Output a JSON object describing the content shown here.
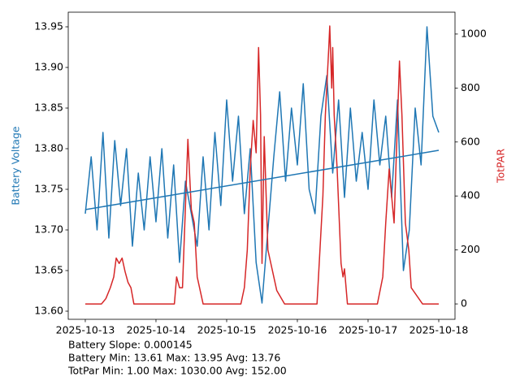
{
  "chart_data": {
    "type": "line",
    "ylabel": "Battery Voltage",
    "y2label": "TotPAR",
    "xlim": [
      "2025-10-12T18:13",
      "2025-10-18T05:31"
    ],
    "xticks": [
      "2025-10-13",
      "2025-10-14",
      "2025-10-15",
      "2025-10-16",
      "2025-10-17",
      "2025-10-18"
    ],
    "ylim": [
      13.59,
      13.968
    ],
    "yticks": [
      {
        "value": 13.6,
        "label": "13.60"
      },
      {
        "value": 13.65,
        "label": "13.65"
      },
      {
        "value": 13.7,
        "label": "13.70"
      },
      {
        "value": 13.75,
        "label": "13.75"
      },
      {
        "value": 13.8,
        "label": "13.80"
      },
      {
        "value": 13.85,
        "label": "13.85"
      },
      {
        "value": 13.9,
        "label": "13.90"
      },
      {
        "value": 13.95,
        "label": "13.95"
      }
    ],
    "y2lim": [
      -57,
      1081
    ],
    "y2ticks": [
      0,
      200,
      400,
      600,
      800,
      1000
    ],
    "series": [
      {
        "color": "#1f77b4",
        "x": [
          "2025-10-13T00:00",
          "2025-10-13T02:00",
          "2025-10-13T04:00",
          "2025-10-13T06:00",
          "2025-10-13T08:00",
          "2025-10-13T10:00",
          "2025-10-13T12:00",
          "2025-10-13T14:00",
          "2025-10-13T16:00",
          "2025-10-13T18:00",
          "2025-10-13T20:00",
          "2025-10-13T22:00",
          "2025-10-14T00:00",
          "2025-10-14T02:00",
          "2025-10-14T04:00",
          "2025-10-14T06:00",
          "2025-10-14T08:00",
          "2025-10-14T10:00",
          "2025-10-14T12:00",
          "2025-10-14T14:00",
          "2025-10-14T16:00",
          "2025-10-14T18:00",
          "2025-10-14T20:00",
          "2025-10-14T22:00",
          "2025-10-15T00:00",
          "2025-10-15T02:00",
          "2025-10-15T04:00",
          "2025-10-15T06:00",
          "2025-10-15T08:00",
          "2025-10-15T10:00",
          "2025-10-15T12:00",
          "2025-10-15T14:00",
          "2025-10-15T16:00",
          "2025-10-15T18:00",
          "2025-10-15T20:00",
          "2025-10-15T22:00",
          "2025-10-16T00:00",
          "2025-10-16T02:00",
          "2025-10-16T04:00",
          "2025-10-16T06:00",
          "2025-10-16T08:00",
          "2025-10-16T10:00",
          "2025-10-16T12:00",
          "2025-10-16T14:00",
          "2025-10-16T16:00",
          "2025-10-16T18:00",
          "2025-10-16T20:00",
          "2025-10-16T22:00",
          "2025-10-17T00:00",
          "2025-10-17T02:00",
          "2025-10-17T04:00",
          "2025-10-17T06:00",
          "2025-10-17T08:00",
          "2025-10-17T10:00",
          "2025-10-17T12:00",
          "2025-10-17T14:00",
          "2025-10-17T16:00",
          "2025-10-17T18:00",
          "2025-10-17T20:00",
          "2025-10-17T22:00",
          "2025-10-18T00:00"
        ],
        "values": [
          13.72,
          13.79,
          13.7,
          13.82,
          13.69,
          13.81,
          13.73,
          13.8,
          13.68,
          13.77,
          13.7,
          13.79,
          13.71,
          13.8,
          13.69,
          13.78,
          13.66,
          13.76,
          13.72,
          13.68,
          13.79,
          13.7,
          13.82,
          13.73,
          13.86,
          13.76,
          13.84,
          13.72,
          13.8,
          13.66,
          13.61,
          13.7,
          13.79,
          13.87,
          13.76,
          13.85,
          13.78,
          13.88,
          13.75,
          13.72,
          13.84,
          13.89,
          13.77,
          13.86,
          13.74,
          13.85,
          13.76,
          13.82,
          13.75,
          13.86,
          13.78,
          13.84,
          13.74,
          13.86,
          13.65,
          13.7,
          13.85,
          13.78,
          13.95,
          13.84,
          13.82
        ]
      },
      {
        "color": "#d62728",
        "axis": "y2",
        "x": [
          "2025-10-13T00:00",
          "2025-10-13T05:30",
          "2025-10-13T07:00",
          "2025-10-13T08:30",
          "2025-10-13T09:40",
          "2025-10-13T10:30",
          "2025-10-13T11:30",
          "2025-10-13T12:30",
          "2025-10-13T13:30",
          "2025-10-13T14:30",
          "2025-10-13T15:30",
          "2025-10-13T16:30",
          "2025-10-14T06:15",
          "2025-10-14T07:00",
          "2025-10-14T08:00",
          "2025-10-14T09:00",
          "2025-10-14T10:50",
          "2025-10-14T12:00",
          "2025-10-14T13:00",
          "2025-10-14T14:00",
          "2025-10-14T16:00",
          "2025-10-15T04:50",
          "2025-10-15T06:00",
          "2025-10-15T07:00",
          "2025-10-15T08:00",
          "2025-10-15T09:00",
          "2025-10-15T10:00",
          "2025-10-15T10:50",
          "2025-10-15T11:30",
          "2025-10-15T12:00",
          "2025-10-15T12:45",
          "2025-10-15T14:00",
          "2025-10-15T15:00",
          "2025-10-15T17:00",
          "2025-10-15T19:40",
          "2025-10-16T06:40",
          "2025-10-16T08:40",
          "2025-10-16T09:30",
          "2025-10-16T10:40",
          "2025-10-16T11:00",
          "2025-10-16T11:40",
          "2025-10-16T12:00",
          "2025-10-16T12:30",
          "2025-10-16T13:30",
          "2025-10-16T14:50",
          "2025-10-16T15:30",
          "2025-10-16T16:00",
          "2025-10-16T17:00",
          "2025-10-17T03:10",
          "2025-10-17T05:00",
          "2025-10-17T06:00",
          "2025-10-17T07:10",
          "2025-10-17T08:00",
          "2025-10-17T08:50",
          "2025-10-17T10:40",
          "2025-10-17T11:30",
          "2025-10-17T12:40",
          "2025-10-17T13:50",
          "2025-10-17T14:40",
          "2025-10-17T18:30",
          "2025-10-18T00:00"
        ],
        "values": [
          0,
          0,
          20,
          60,
          100,
          170,
          150,
          170,
          120,
          80,
          60,
          0,
          0,
          100,
          60,
          60,
          610,
          350,
          300,
          100,
          0,
          0,
          60,
          200,
          500,
          680,
          560,
          950,
          700,
          150,
          620,
          200,
          150,
          50,
          0,
          0,
          400,
          700,
          950,
          1030,
          800,
          950,
          700,
          500,
          150,
          100,
          130,
          0,
          0,
          100,
          300,
          500,
          400,
          300,
          900,
          700,
          300,
          200,
          60,
          0,
          0
        ]
      }
    ],
    "trend": {
      "color": "#1f77b4",
      "x": [
        "2025-10-13T00:00",
        "2025-10-18T00:00"
      ],
      "values": [
        13.725,
        13.798
      ]
    },
    "annotations": [
      "Battery Slope: 0.000145",
      "Battery Min: 13.61 Max: 13.95 Avg: 13.76",
      "TotPar Min: 1.00 Max: 1030.00 Avg: 152.00"
    ]
  }
}
